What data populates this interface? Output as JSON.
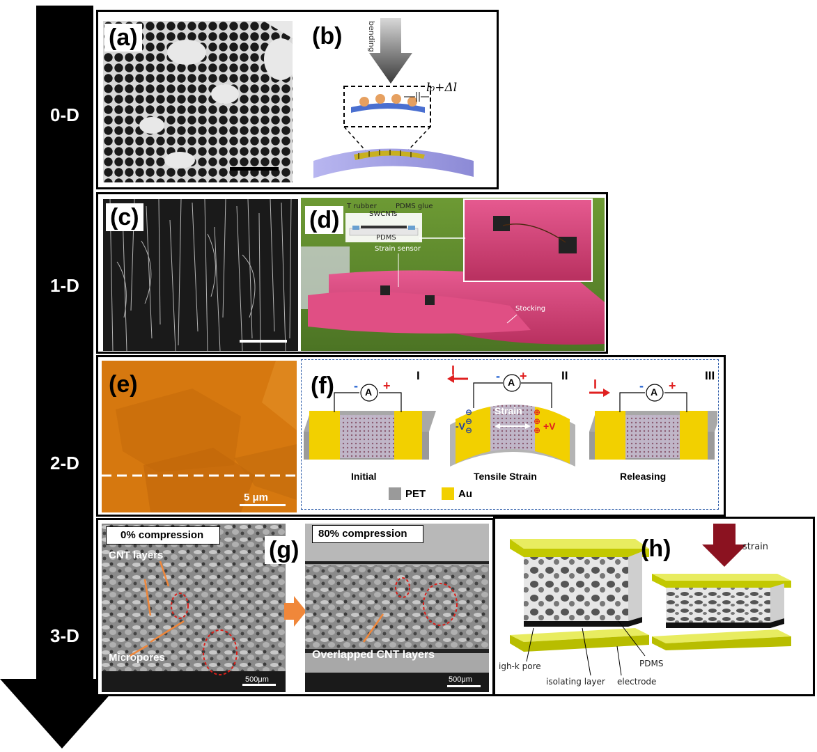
{
  "dimension_labels": [
    "0-D",
    "1-D",
    "2-D",
    "3-D"
  ],
  "panels": {
    "a": "(a)",
    "b": "(b)",
    "c": "(c)",
    "d": "(d)",
    "e": "(e)",
    "f": "(f)",
    "g": "(g)",
    "h": "(h)"
  },
  "panel_b": {
    "arrow_label": "bending",
    "gap_label": "l₀+Δl"
  },
  "panel_d": {
    "rubber_label": "T rubber",
    "glue_label": "PDMS glue",
    "swcnt_label": "SWCNTs",
    "pdms_label": "PDMS",
    "sensor_label": "Strain sensor",
    "stocking_label": "Stocking"
  },
  "panel_e": {
    "scale_bar": "5 μm"
  },
  "panel_f": {
    "stages": [
      "I",
      "II",
      "III"
    ],
    "stage_names": [
      "Initial",
      "Tensile Strain",
      "Releasing"
    ],
    "ammeter": "A",
    "strain_label": "Strain",
    "current_label": "I",
    "minus_v": "-V",
    "plus_v": "+V",
    "legend": [
      {
        "name": "PET",
        "color": "#9a9a9a"
      },
      {
        "name": "Au",
        "color": "#f2d000"
      }
    ]
  },
  "panel_g": {
    "left_header": "0% compression",
    "right_header": "80% compression",
    "cnt_layers": "CNT layers",
    "micropores": "Micropores",
    "overlapped": "Overlapped CNT layers",
    "scale_left": "500μm",
    "scale_right": "500μm"
  },
  "panel_h": {
    "strain_label": "strain",
    "pore_label": "igh-k pore",
    "isolating_label": "isolating layer",
    "electrode_label": "electrode",
    "pdms_label": "PDMS"
  },
  "colors": {
    "arrow": "#000000",
    "electrode_yellow": "#d8e000",
    "stocking_pink": "#d9407a",
    "afm_orange": "#d6780f",
    "grass_green": "#5d8a2a",
    "highlight_red": "#d9201a",
    "orange_annotation": "#f0873a",
    "strain_arrow": "#8b1220"
  }
}
